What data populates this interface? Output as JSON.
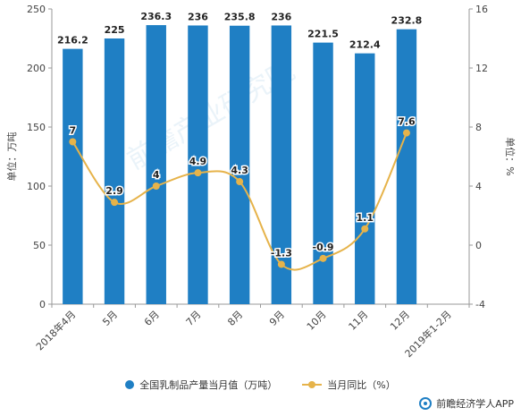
{
  "chart_data": {
    "type": "bar",
    "categories": [
      "2018年4月",
      "5月",
      "6月",
      "7月",
      "8月",
      "9月",
      "10月",
      "11月",
      "12月",
      "2019年1-2月"
    ],
    "series": [
      {
        "name": "全国乳制品产量当月值（万吨）",
        "type": "bar",
        "axis": "left",
        "values": [
          216.2,
          225,
          236.3,
          236,
          235.8,
          236,
          221.5,
          212.4,
          232.8,
          null
        ],
        "value_labels": [
          "216.2",
          "225",
          "236.3",
          "236",
          "235.8",
          "236",
          "221.5",
          "212.4",
          "232.8",
          ""
        ]
      },
      {
        "name": "当月同比（%）",
        "type": "line",
        "axis": "right",
        "values": [
          7,
          2.9,
          4,
          4.9,
          4.3,
          -1.3,
          -0.9,
          1.1,
          7.6,
          null
        ],
        "value_labels": [
          "7",
          "2.9",
          "4",
          "4.9",
          "4.3",
          "-1.3",
          "-0.9",
          "1.1",
          "7.6",
          ""
        ]
      }
    ],
    "ylabel": "单位：万吨",
    "y2label": "单位：%",
    "ylim": [
      0,
      250
    ],
    "y2lim": [
      -4,
      16
    ],
    "yticks": [
      "0",
      "50",
      "100",
      "150",
      "200",
      "250"
    ],
    "y2ticks": [
      "-4",
      "0",
      "4",
      "8",
      "12",
      "16"
    ],
    "colors": {
      "bar": "#1f7fc4",
      "line": "#e6b34a"
    },
    "grid": false,
    "legend_position": "bottom"
  },
  "legend": {
    "bar_label": "全国乳制品产量当月值（万吨）",
    "line_label": "当月同比（%）"
  },
  "footer": {
    "brand": "前瞻经济学人APP"
  },
  "watermark": "前瞻产业研究院"
}
